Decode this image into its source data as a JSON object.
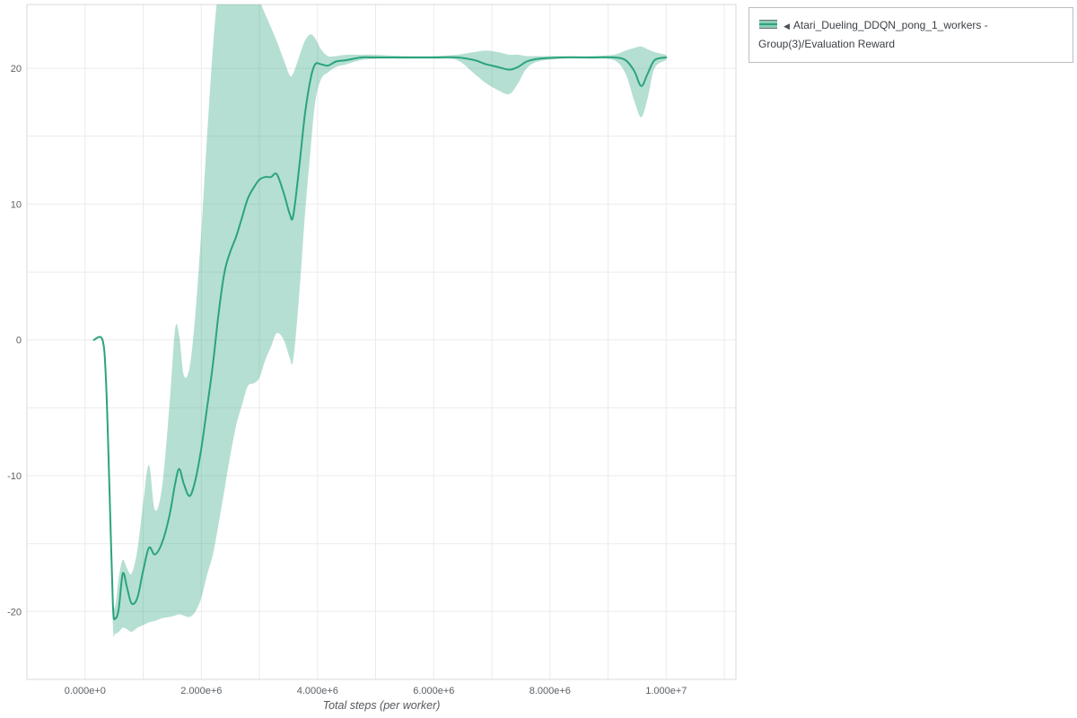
{
  "legend": {
    "collapse_glyph": "◀",
    "label": "Atari_Dueling_DDQN_pong_1_workers - Group(3)/Evaluation Reward"
  },
  "chart_data": {
    "type": "line",
    "title": "",
    "xlabel": "Total steps (per worker)",
    "ylabel": "",
    "x_unit": "steps (values stored in millions)",
    "xlim": [
      -1.0,
      11.2
    ],
    "ylim": [
      -25.0,
      24.7
    ],
    "x_minor_step": 1,
    "y_minor_step": 5,
    "grid": true,
    "legend_position": "top-right",
    "x_ticks": [
      {
        "value": 0,
        "label": "0.000e+0"
      },
      {
        "value": 2,
        "label": "2.000e+6"
      },
      {
        "value": 4,
        "label": "4.000e+6"
      },
      {
        "value": 6,
        "label": "6.000e+6"
      },
      {
        "value": 8,
        "label": "8.000e+6"
      },
      {
        "value": 10,
        "label": "1.000e+7"
      }
    ],
    "y_ticks": [
      {
        "value": -20,
        "label": "-20"
      },
      {
        "value": -10,
        "label": "-10"
      },
      {
        "value": 0,
        "label": "0"
      },
      {
        "value": 10,
        "label": "10"
      },
      {
        "value": 20,
        "label": "20"
      }
    ],
    "colors": {
      "line": "#2ba37e",
      "band": "rgba(43,163,126,0.35)",
      "band_legend": "rgba(43,163,126,0.55)",
      "grid": "#ebebeb",
      "plot_border": "#d9d9d9"
    },
    "series": [
      {
        "name": "Atari_Dueling_DDQN_pong_1_workers - Group(3)/Evaluation Reward",
        "points_format": [
          "x_millions",
          "mean",
          "band_low",
          "band_high"
        ],
        "points": [
          [
            0.15,
            0,
            0,
            0
          ],
          [
            0.3,
            0,
            0,
            0
          ],
          [
            0.36,
            -3.0,
            -3.5,
            -2.5
          ],
          [
            0.42,
            -11.0,
            -12.0,
            -10.0
          ],
          [
            0.48,
            -19.5,
            -21.0,
            -18.5
          ],
          [
            0.52,
            -20.5,
            -21.6,
            -19.6
          ],
          [
            0.58,
            -19.8,
            -21.5,
            -17.5
          ],
          [
            0.65,
            -17.2,
            -21.2,
            -16.2
          ],
          [
            0.72,
            -18.2,
            -21.3,
            -16.8
          ],
          [
            0.8,
            -19.4,
            -21.5,
            -17.2
          ],
          [
            0.9,
            -19.0,
            -21.2,
            -15.5
          ],
          [
            1.0,
            -17.0,
            -21.0,
            -12.0
          ],
          [
            1.1,
            -15.3,
            -20.8,
            -9.2
          ],
          [
            1.2,
            -15.8,
            -20.7,
            -12.5
          ],
          [
            1.32,
            -15.0,
            -20.5,
            -11.0
          ],
          [
            1.45,
            -13.0,
            -20.4,
            -5.0
          ],
          [
            1.55,
            -10.6,
            -20.3,
            0.8
          ],
          [
            1.62,
            -9.5,
            -20.2,
            0.3
          ],
          [
            1.7,
            -10.6,
            -20.3,
            -2.6
          ],
          [
            1.8,
            -11.5,
            -20.4,
            -2.0
          ],
          [
            1.9,
            -10.3,
            -20.0,
            2.0
          ],
          [
            2.0,
            -8.0,
            -19.0,
            8.0
          ],
          [
            2.1,
            -5.0,
            -17.3,
            15.0
          ],
          [
            2.2,
            -1.8,
            -15.8,
            21.5
          ],
          [
            2.3,
            2.0,
            -13.5,
            26.0
          ],
          [
            2.4,
            5.0,
            -11.0,
            27.0
          ],
          [
            2.5,
            6.5,
            -8.5,
            27.0
          ],
          [
            2.6,
            7.6,
            -6.3,
            27.0
          ],
          [
            2.7,
            9.0,
            -4.8,
            27.0
          ],
          [
            2.8,
            10.4,
            -3.4,
            26.5
          ],
          [
            2.9,
            11.2,
            -3.2,
            26.0
          ],
          [
            3.0,
            11.8,
            -2.8,
            25.0
          ],
          [
            3.1,
            12.0,
            -1.5,
            24.0
          ],
          [
            3.2,
            12.0,
            -0.5,
            23.0
          ],
          [
            3.3,
            12.2,
            0.5,
            22.0
          ],
          [
            3.42,
            10.8,
            0.0,
            20.6
          ],
          [
            3.52,
            9.3,
            -1.3,
            19.5
          ],
          [
            3.58,
            9.1,
            -1.5,
            19.6
          ],
          [
            3.68,
            12.5,
            3.0,
            20.8
          ],
          [
            3.78,
            16.5,
            9.0,
            22.0
          ],
          [
            3.88,
            19.2,
            14.0,
            22.5
          ],
          [
            3.96,
            20.3,
            17.5,
            22.2
          ],
          [
            4.06,
            20.3,
            19.2,
            21.4
          ],
          [
            4.18,
            20.2,
            19.7,
            20.9
          ],
          [
            4.32,
            20.5,
            20.1,
            20.9
          ],
          [
            4.5,
            20.6,
            20.3,
            21.0
          ],
          [
            4.75,
            20.8,
            20.6,
            21.0
          ],
          [
            5.0,
            20.8,
            20.7,
            21.0
          ],
          [
            5.5,
            20.8,
            20.7,
            20.9
          ],
          [
            6.0,
            20.8,
            20.7,
            20.9
          ],
          [
            6.4,
            20.8,
            20.6,
            21.0
          ],
          [
            6.7,
            20.6,
            19.6,
            21.2
          ],
          [
            6.9,
            20.3,
            18.9,
            21.3
          ],
          [
            7.1,
            20.1,
            18.4,
            21.2
          ],
          [
            7.3,
            19.9,
            18.1,
            21.0
          ],
          [
            7.45,
            20.1,
            18.9,
            21.0
          ],
          [
            7.6,
            20.5,
            20.0,
            20.9
          ],
          [
            7.8,
            20.7,
            20.5,
            20.9
          ],
          [
            8.2,
            20.8,
            20.7,
            20.9
          ],
          [
            8.7,
            20.8,
            20.7,
            20.9
          ],
          [
            9.1,
            20.8,
            20.6,
            21.0
          ],
          [
            9.3,
            20.6,
            19.6,
            21.3
          ],
          [
            9.45,
            19.8,
            17.6,
            21.5
          ],
          [
            9.57,
            18.7,
            16.4,
            21.6
          ],
          [
            9.68,
            19.6,
            17.8,
            21.4
          ],
          [
            9.8,
            20.6,
            20.0,
            21.2
          ],
          [
            10.0,
            20.8,
            20.6,
            21.0
          ]
        ]
      }
    ]
  }
}
